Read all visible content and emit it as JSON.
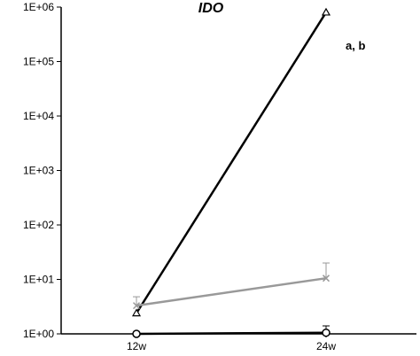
{
  "chart_data": {
    "type": "line",
    "title": "IDO",
    "xlabel": "",
    "ylabel": "",
    "y_scale": "log",
    "ylim": [
      1,
      1000000
    ],
    "y_ticks": [
      1,
      10,
      100,
      1000,
      10000,
      100000,
      1000000
    ],
    "y_tick_labels": [
      "1E+00",
      "1E+01",
      "1E+02",
      "1E+03",
      "1E+04",
      "1E+05",
      "1E+06"
    ],
    "categories": [
      "12w",
      "24w"
    ],
    "grid": false,
    "series": [
      {
        "values": [
          2.4,
          800000
        ],
        "marker": "triangle",
        "color": "#000000"
      },
      {
        "values": [
          3.3,
          10.5
        ],
        "error_high": [
          4.8,
          20
        ],
        "marker": "x",
        "color": "#999999"
      },
      {
        "values": [
          1.0,
          1.05
        ],
        "error_high": [
          null,
          1.4
        ],
        "marker": "circle",
        "color": "#000000"
      }
    ],
    "annotations": [
      {
        "text": "a, b"
      }
    ]
  }
}
